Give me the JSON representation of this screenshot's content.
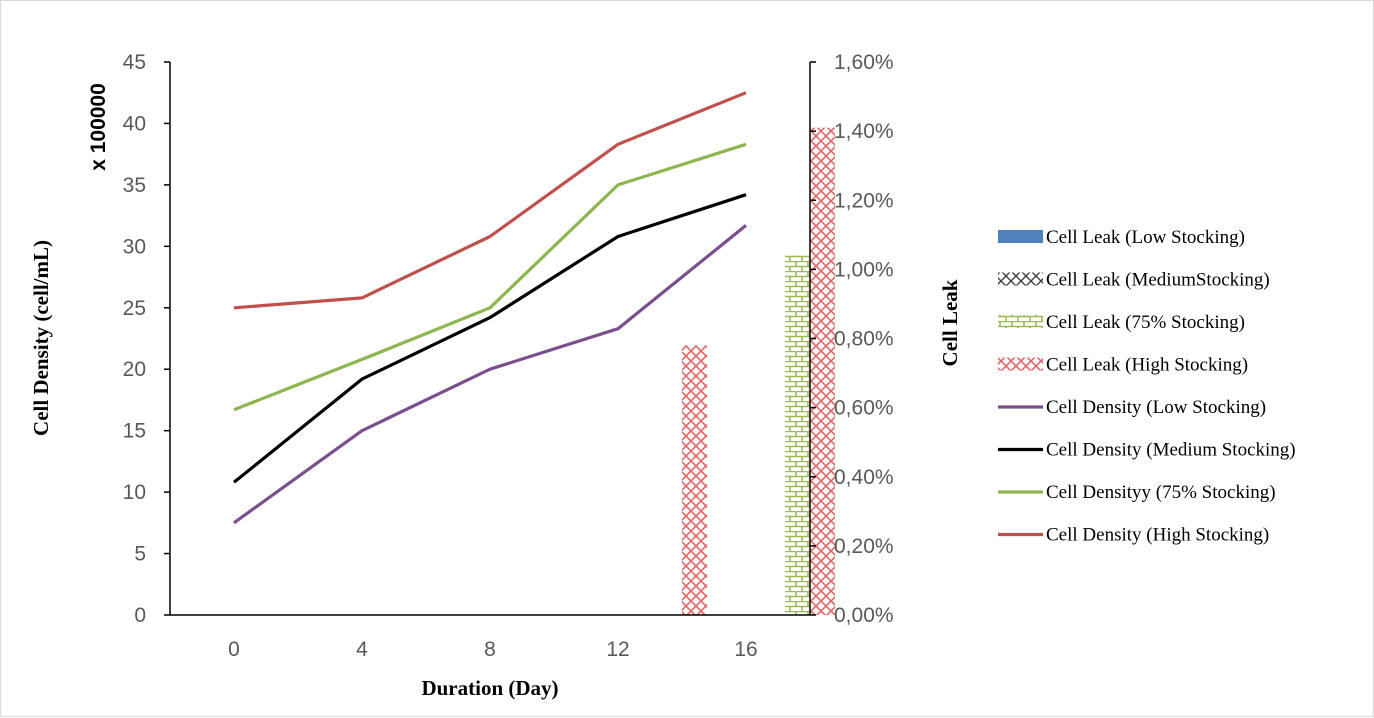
{
  "chart_data": {
    "type": "line+bar",
    "x_title": "Duration (Day)",
    "y_title": "Cell Density  (cell/mL)",
    "y_multiplier": "x 100000",
    "y2_title": "Cell Leak",
    "categories": [
      "0",
      "4",
      "8",
      "12",
      "16"
    ],
    "y_ticks": [
      "0",
      "5",
      "10",
      "15",
      "20",
      "25",
      "30",
      "35",
      "40",
      "45"
    ],
    "y2_ticks": [
      "0,00%",
      "0,20%",
      "0,40%",
      "0,60%",
      "0,80%",
      "1,00%",
      "1,20%",
      "1,40%",
      "1,60%"
    ],
    "ylim": [
      0,
      45
    ],
    "y2lim": [
      0,
      1.6
    ],
    "bar_series": [
      {
        "name": "Cell Leak (Low Stocking)",
        "values": [
          0,
          0,
          0,
          0,
          0
        ],
        "color": "#4f81bd",
        "pattern": "solid"
      },
      {
        "name": "Cell Leak (MediumStocking)",
        "values": [
          0,
          0,
          0,
          0,
          0
        ],
        "color": "#404040",
        "pattern": "cross"
      },
      {
        "name": "Cell Leak (75% Stocking)",
        "values": [
          0,
          0,
          0,
          0,
          1.04
        ],
        "color": "#9bbb59",
        "pattern": "brick"
      },
      {
        "name": "Cell Leak (High Stocking)",
        "values": [
          0,
          0,
          0,
          0.78,
          1.41
        ],
        "color": "#e06666",
        "pattern": "cross"
      }
    ],
    "line_series": [
      {
        "name": "Cell Density (Low Stocking)",
        "values": [
          7.5,
          15,
          20,
          23.3,
          31.7
        ],
        "color": "#7b4f8e"
      },
      {
        "name": "Cell Density (Medium Stocking)",
        "values": [
          10.8,
          19.2,
          24.2,
          30.8,
          34.2
        ],
        "color": "#000000"
      },
      {
        "name": "Cell Densityy (75% Stocking)",
        "values": [
          16.7,
          20.8,
          25,
          35,
          38.3
        ],
        "color": "#8db650"
      },
      {
        "name": "Cell Density (High Stocking)",
        "values": [
          25,
          25.8,
          30.8,
          38.3,
          42.5
        ],
        "color": "#c0504d"
      }
    ]
  }
}
